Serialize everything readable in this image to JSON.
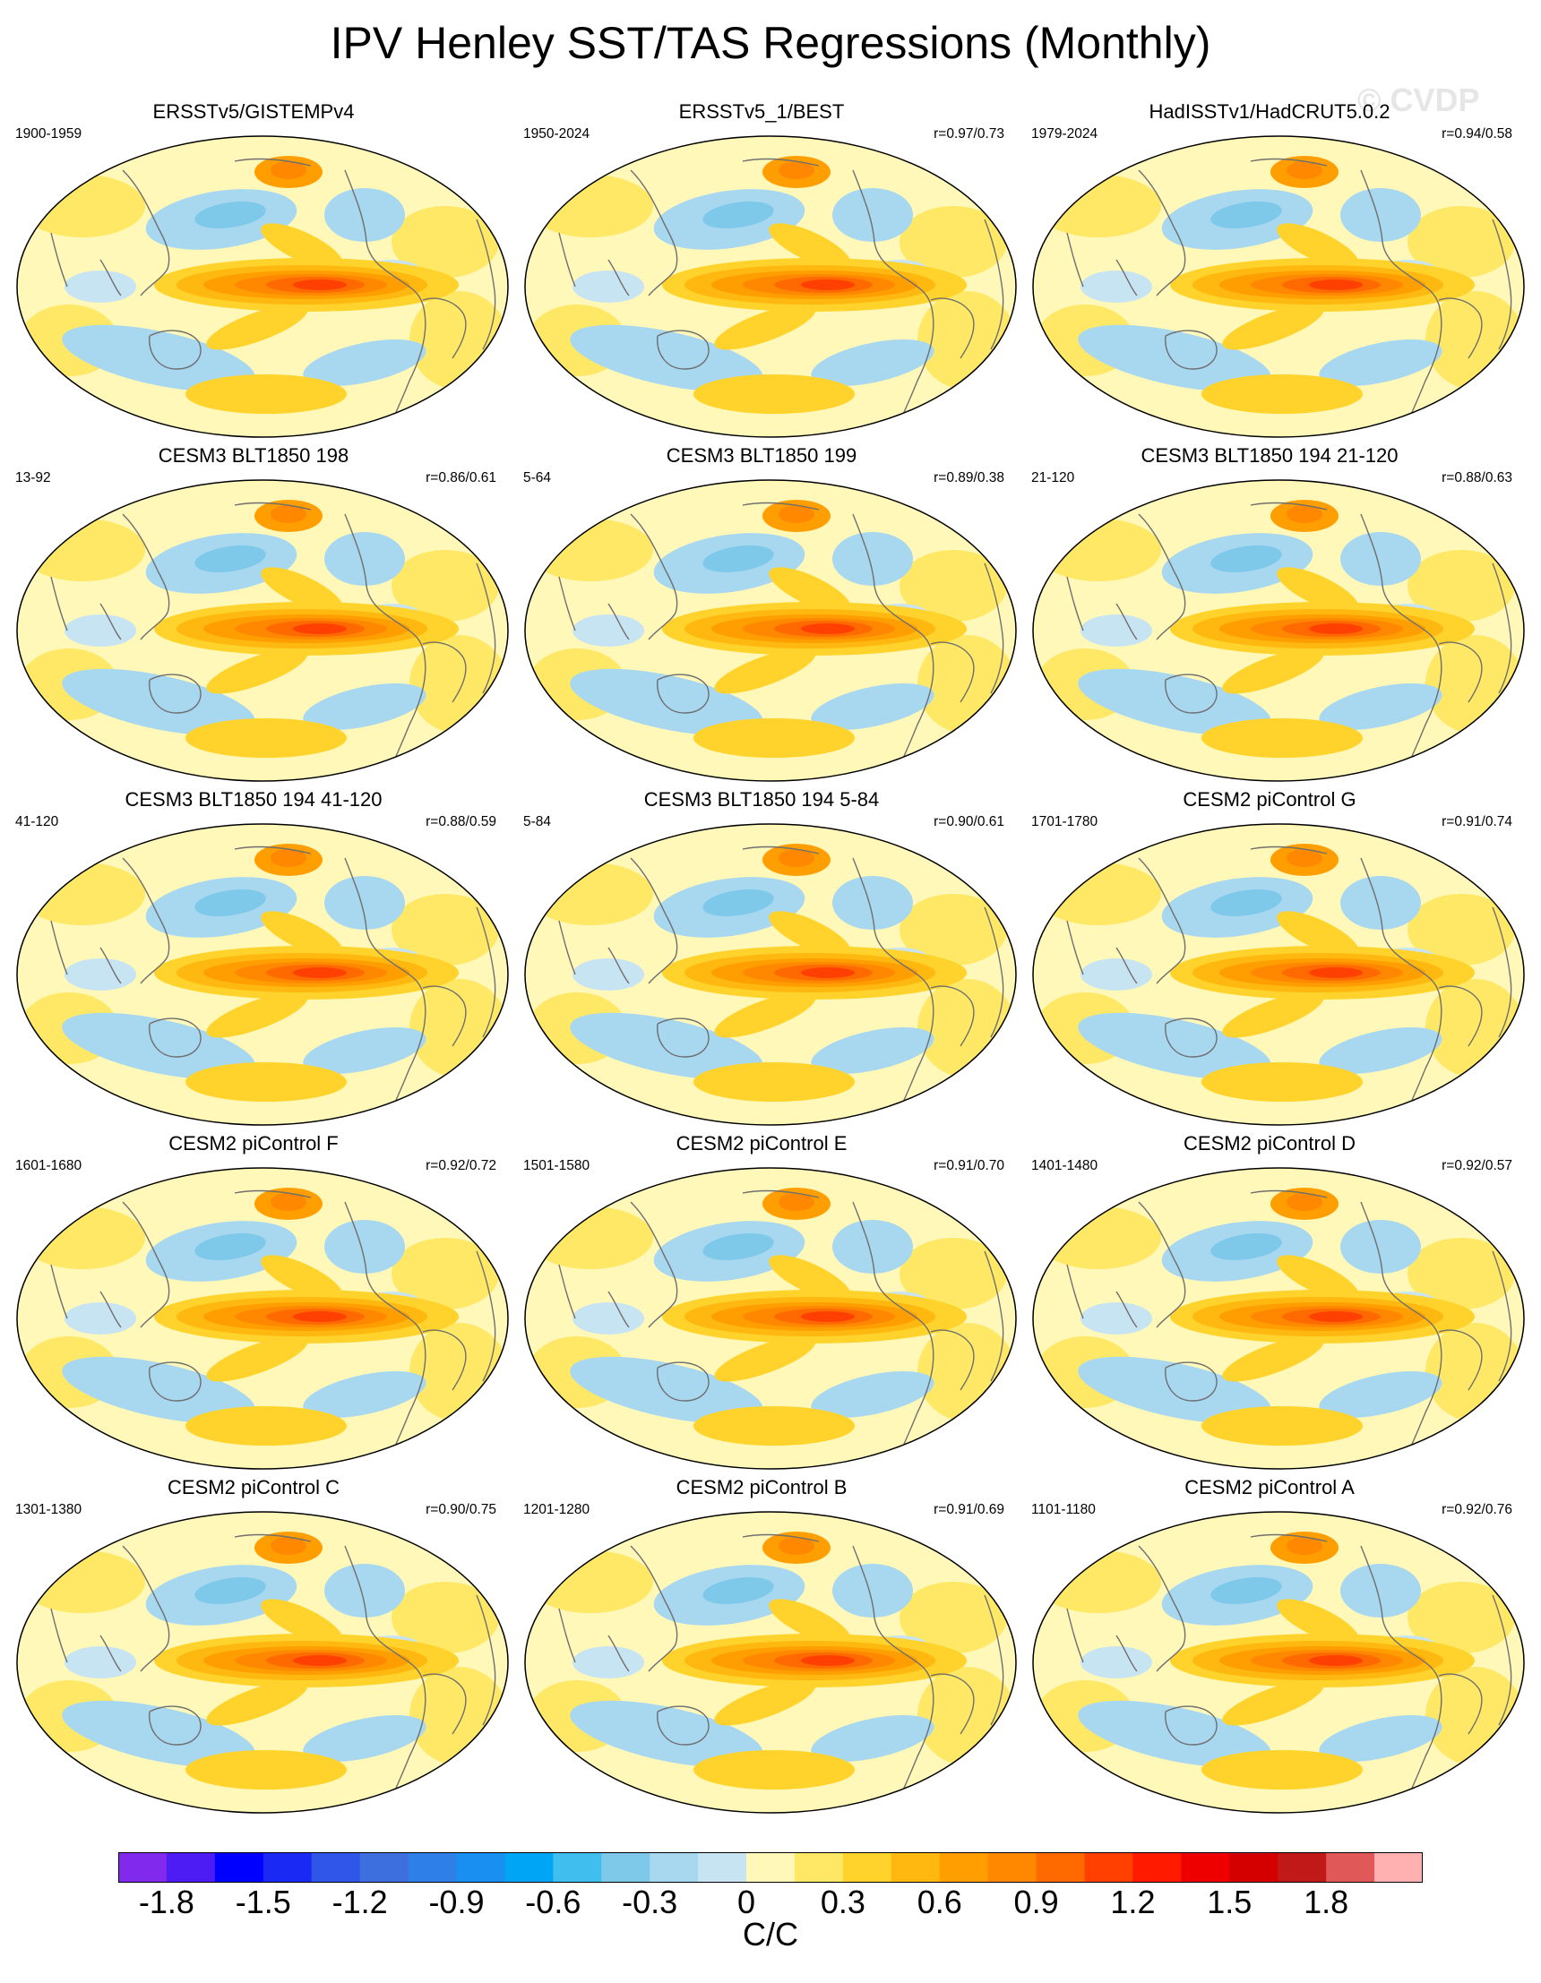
{
  "title": "IPV Henley SST/TAS Regressions (Monthly)",
  "watermark": "© CVDP",
  "chart_data": {
    "type": "heatmap",
    "title": "IPV Henley SST/TAS Regressions (Monthly)",
    "units": "C/C",
    "colorbar": {
      "ticks": [
        "-1.8",
        "-1.5",
        "-1.2",
        "-0.9",
        "-0.6",
        "-0.3",
        "0",
        "0.3",
        "0.6",
        "0.9",
        "1.2",
        "1.5",
        "1.8"
      ],
      "colors": [
        "#8229ee",
        "#4d1cf5",
        "#0000ff",
        "#1a2af4",
        "#2f55e9",
        "#3d6fdf",
        "#2e7fe8",
        "#1a8ff2",
        "#00a5f5",
        "#40bfef",
        "#7ec8ea",
        "#a8d7f0",
        "#c7e4f3",
        "#fff8b8",
        "#ffe866",
        "#ffd32c",
        "#ffb810",
        "#ff9e00",
        "#ff8800",
        "#ff6a00",
        "#ff4000",
        "#ff1a00",
        "#ee0000",
        "#d40000",
        "#c11818",
        "#e05858",
        "#ffb0b0"
      ]
    },
    "panels": [
      {
        "name": "ERSSTv5/GISTEMPv4",
        "period": "1900-1959",
        "r": ""
      },
      {
        "name": "ERSSTv5_1/BEST",
        "period": "1950-2024",
        "r": "r=0.97/0.73"
      },
      {
        "name": "HadISSTv1/HadCRUT5.0.2",
        "period": "1979-2024",
        "r": "r=0.94/0.58"
      },
      {
        "name": "CESM3 BLT1850 198",
        "period": "13-92",
        "r": "r=0.86/0.61"
      },
      {
        "name": "CESM3 BLT1850 199",
        "period": "5-64",
        "r": "r=0.89/0.38"
      },
      {
        "name": "CESM3 BLT1850 194 21-120",
        "period": "21-120",
        "r": "r=0.88/0.63"
      },
      {
        "name": "CESM3 BLT1850 194 41-120",
        "period": "41-120",
        "r": "r=0.88/0.59"
      },
      {
        "name": "CESM3 BLT1850 194 5-84",
        "period": "5-84",
        "r": "r=0.90/0.61"
      },
      {
        "name": "CESM2 piControl G",
        "period": "1701-1780",
        "r": "r=0.91/0.74"
      },
      {
        "name": "CESM2 piControl F",
        "period": "1601-1680",
        "r": "r=0.92/0.72"
      },
      {
        "name": "CESM2 piControl E",
        "period": "1501-1580",
        "r": "r=0.91/0.70"
      },
      {
        "name": "CESM2 piControl D",
        "period": "1401-1480",
        "r": "r=0.92/0.57"
      },
      {
        "name": "CESM2 piControl C",
        "period": "1301-1380",
        "r": "r=0.90/0.75"
      },
      {
        "name": "CESM2 piControl B",
        "period": "1201-1280",
        "r": "r=0.91/0.69"
      },
      {
        "name": "CESM2 piControl A",
        "period": "1101-1180",
        "r": "r=0.92/0.76"
      }
    ]
  }
}
